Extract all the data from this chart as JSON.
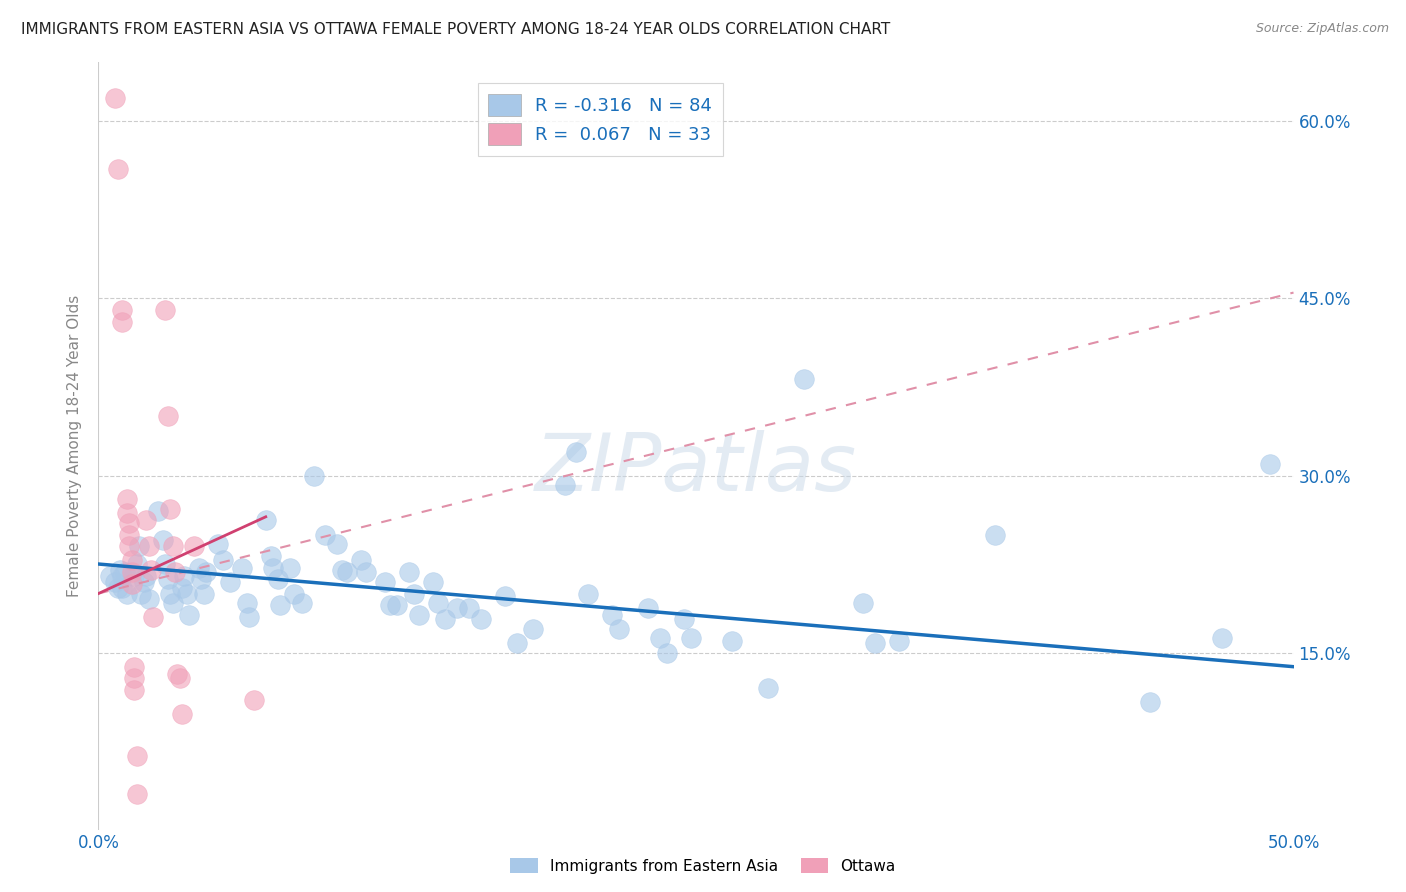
{
  "title": "IMMIGRANTS FROM EASTERN ASIA VS OTTAWA FEMALE POVERTY AMONG 18-24 YEAR OLDS CORRELATION CHART",
  "source": "Source: ZipAtlas.com",
  "ylabel": "Female Poverty Among 18-24 Year Olds",
  "xlim": [
    0.0,
    0.5
  ],
  "ylim": [
    0.0,
    0.65
  ],
  "yticks": [
    0.15,
    0.3,
    0.45,
    0.6
  ],
  "ytick_labels": [
    "15.0%",
    "30.0%",
    "45.0%",
    "60.0%"
  ],
  "xticks": [
    0.0,
    0.1,
    0.2,
    0.3,
    0.4,
    0.5
  ],
  "xtick_labels": [
    "0.0%",
    "",
    "",
    "",
    "",
    "50.0%"
  ],
  "blue_color": "#a8c8e8",
  "pink_color": "#f0a0b8",
  "trend_blue": "#1a6fba",
  "trend_pink": "#d04070",
  "trend_pink_dashed": "#e090a8",
  "axis_label_color": "#1a6fba",
  "watermark_text": "ZIPatlas",
  "blue_scatter": [
    [
      0.005,
      0.215
    ],
    [
      0.007,
      0.21
    ],
    [
      0.008,
      0.205
    ],
    [
      0.009,
      0.22
    ],
    [
      0.01,
      0.215
    ],
    [
      0.01,
      0.205
    ],
    [
      0.011,
      0.218
    ],
    [
      0.012,
      0.2
    ],
    [
      0.015,
      0.215
    ],
    [
      0.016,
      0.225
    ],
    [
      0.017,
      0.24
    ],
    [
      0.018,
      0.2
    ],
    [
      0.019,
      0.21
    ],
    [
      0.02,
      0.215
    ],
    [
      0.021,
      0.195
    ],
    [
      0.025,
      0.27
    ],
    [
      0.027,
      0.245
    ],
    [
      0.028,
      0.225
    ],
    [
      0.029,
      0.212
    ],
    [
      0.03,
      0.2
    ],
    [
      0.031,
      0.192
    ],
    [
      0.035,
      0.205
    ],
    [
      0.036,
      0.215
    ],
    [
      0.037,
      0.2
    ],
    [
      0.038,
      0.182
    ],
    [
      0.042,
      0.222
    ],
    [
      0.043,
      0.212
    ],
    [
      0.044,
      0.2
    ],
    [
      0.045,
      0.218
    ],
    [
      0.05,
      0.242
    ],
    [
      0.052,
      0.228
    ],
    [
      0.055,
      0.21
    ],
    [
      0.06,
      0.222
    ],
    [
      0.062,
      0.192
    ],
    [
      0.063,
      0.18
    ],
    [
      0.07,
      0.262
    ],
    [
      0.072,
      0.232
    ],
    [
      0.073,
      0.222
    ],
    [
      0.075,
      0.212
    ],
    [
      0.076,
      0.19
    ],
    [
      0.08,
      0.222
    ],
    [
      0.082,
      0.2
    ],
    [
      0.085,
      0.192
    ],
    [
      0.09,
      0.3
    ],
    [
      0.095,
      0.25
    ],
    [
      0.1,
      0.242
    ],
    [
      0.102,
      0.22
    ],
    [
      0.104,
      0.218
    ],
    [
      0.11,
      0.228
    ],
    [
      0.112,
      0.218
    ],
    [
      0.12,
      0.21
    ],
    [
      0.122,
      0.19
    ],
    [
      0.125,
      0.19
    ],
    [
      0.13,
      0.218
    ],
    [
      0.132,
      0.2
    ],
    [
      0.134,
      0.182
    ],
    [
      0.14,
      0.21
    ],
    [
      0.142,
      0.192
    ],
    [
      0.145,
      0.178
    ],
    [
      0.15,
      0.188
    ],
    [
      0.155,
      0.188
    ],
    [
      0.16,
      0.178
    ],
    [
      0.17,
      0.198
    ],
    [
      0.175,
      0.158
    ],
    [
      0.182,
      0.17
    ],
    [
      0.195,
      0.292
    ],
    [
      0.2,
      0.32
    ],
    [
      0.205,
      0.2
    ],
    [
      0.215,
      0.182
    ],
    [
      0.218,
      0.17
    ],
    [
      0.23,
      0.188
    ],
    [
      0.235,
      0.162
    ],
    [
      0.238,
      0.15
    ],
    [
      0.245,
      0.178
    ],
    [
      0.248,
      0.162
    ],
    [
      0.265,
      0.16
    ],
    [
      0.28,
      0.12
    ],
    [
      0.295,
      0.382
    ],
    [
      0.32,
      0.192
    ],
    [
      0.325,
      0.158
    ],
    [
      0.335,
      0.16
    ],
    [
      0.375,
      0.25
    ],
    [
      0.44,
      0.108
    ],
    [
      0.47,
      0.162
    ],
    [
      0.49,
      0.31
    ]
  ],
  "pink_scatter": [
    [
      0.007,
      0.62
    ],
    [
      0.008,
      0.56
    ],
    [
      0.01,
      0.44
    ],
    [
      0.01,
      0.43
    ],
    [
      0.012,
      0.28
    ],
    [
      0.012,
      0.268
    ],
    [
      0.013,
      0.26
    ],
    [
      0.013,
      0.25
    ],
    [
      0.013,
      0.24
    ],
    [
      0.014,
      0.228
    ],
    [
      0.014,
      0.218
    ],
    [
      0.014,
      0.208
    ],
    [
      0.015,
      0.138
    ],
    [
      0.015,
      0.128
    ],
    [
      0.015,
      0.118
    ],
    [
      0.016,
      0.062
    ],
    [
      0.016,
      0.03
    ],
    [
      0.02,
      0.262
    ],
    [
      0.021,
      0.24
    ],
    [
      0.022,
      0.22
    ],
    [
      0.023,
      0.18
    ],
    [
      0.028,
      0.44
    ],
    [
      0.029,
      0.35
    ],
    [
      0.03,
      0.272
    ],
    [
      0.031,
      0.24
    ],
    [
      0.032,
      0.218
    ],
    [
      0.033,
      0.132
    ],
    [
      0.034,
      0.128
    ],
    [
      0.035,
      0.098
    ],
    [
      0.04,
      0.24
    ],
    [
      0.065,
      0.11
    ]
  ]
}
